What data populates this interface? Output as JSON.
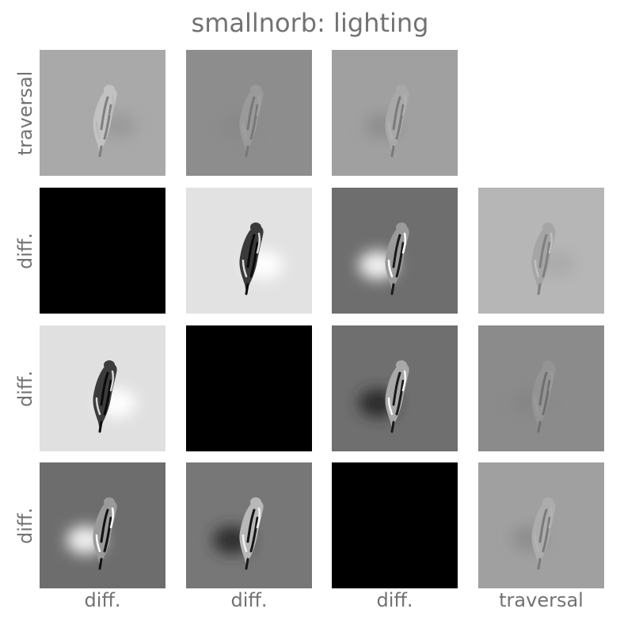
{
  "title": "smallnorb: lighting",
  "row_labels": [
    "traversal",
    "diff.",
    "diff.",
    "diff."
  ],
  "col_labels": [
    "diff.",
    "diff.",
    "diff.",
    "traversal"
  ],
  "grid": [
    [
      {
        "kind": "traversal",
        "bg": "#a9a9a9",
        "obj": "#c2c2c2",
        "dark": "#7f7f7f",
        "light": "#b9b9b9",
        "shadow": "#9a9a9a",
        "shadowSide": "right"
      },
      {
        "kind": "traversal",
        "bg": "#8d8d8d",
        "obj": "#9a9a9a",
        "dark": "#787878",
        "light": "#a0a0a0",
        "shadow": "#888888",
        "shadowSide": "left"
      },
      {
        "kind": "traversal",
        "bg": "#a0a0a0",
        "obj": "#a8a8a8",
        "dark": "#7a7a7a",
        "light": "#b0b0b0",
        "shadow": "#8e8e8e",
        "shadowSide": "left"
      },
      {
        "kind": "empty"
      }
    ],
    [
      {
        "kind": "black"
      },
      {
        "kind": "diff",
        "bg": "#e2e2e2",
        "obj": "#3a3a3a",
        "dark": "#0a0a0a",
        "light": "#dddddd",
        "glow": "#ffffff",
        "glowSide": "right"
      },
      {
        "kind": "diff",
        "bg": "#6e6e6e",
        "obj": "#9a9a9a",
        "dark": "#1a1a1a",
        "light": "#ffffff",
        "glow": "#f2f2f2",
        "glowSide": "left"
      },
      {
        "kind": "traversal",
        "bg": "#b6b6b6",
        "obj": "#a5a5a5",
        "dark": "#7f7f7f",
        "light": "#c0c0c0",
        "shadow": "#aaaaaa",
        "shadowSide": "right"
      }
    ],
    [
      {
        "kind": "diff",
        "bg": "#e0e0e0",
        "obj": "#3c3c3c",
        "dark": "#0a0a0a",
        "light": "#d8d8d8",
        "glow": "#ffffff",
        "glowSide": "right"
      },
      {
        "kind": "black"
      },
      {
        "kind": "diff",
        "bg": "#6f6f6f",
        "obj": "#a8a8a8",
        "dark": "#1a1a1a",
        "light": "#f8f8f8",
        "glow": "#2a2a2a",
        "glowSide": "left"
      },
      {
        "kind": "traversal",
        "bg": "#8b8b8b",
        "obj": "#949494",
        "dark": "#6f6f6f",
        "light": "#9a9a9a",
        "shadow": "#858585",
        "shadowSide": "left"
      }
    ],
    [
      {
        "kind": "diff",
        "bg": "#6d6d6d",
        "obj": "#9a9a9a",
        "dark": "#111111",
        "light": "#ffffff",
        "glow": "#f0f0f0",
        "glowSide": "left"
      },
      {
        "kind": "diff",
        "bg": "#777777",
        "obj": "#b8b8b8",
        "dark": "#161616",
        "light": "#f2f2f2",
        "glow": "#2e2e2e",
        "glowSide": "left"
      },
      {
        "kind": "black"
      },
      {
        "kind": "traversal",
        "bg": "#a0a0a0",
        "obj": "#acacac",
        "dark": "#7a7a7a",
        "light": "#b4b4b4",
        "shadow": "#8d8d8d",
        "shadowSide": "left"
      }
    ]
  ]
}
